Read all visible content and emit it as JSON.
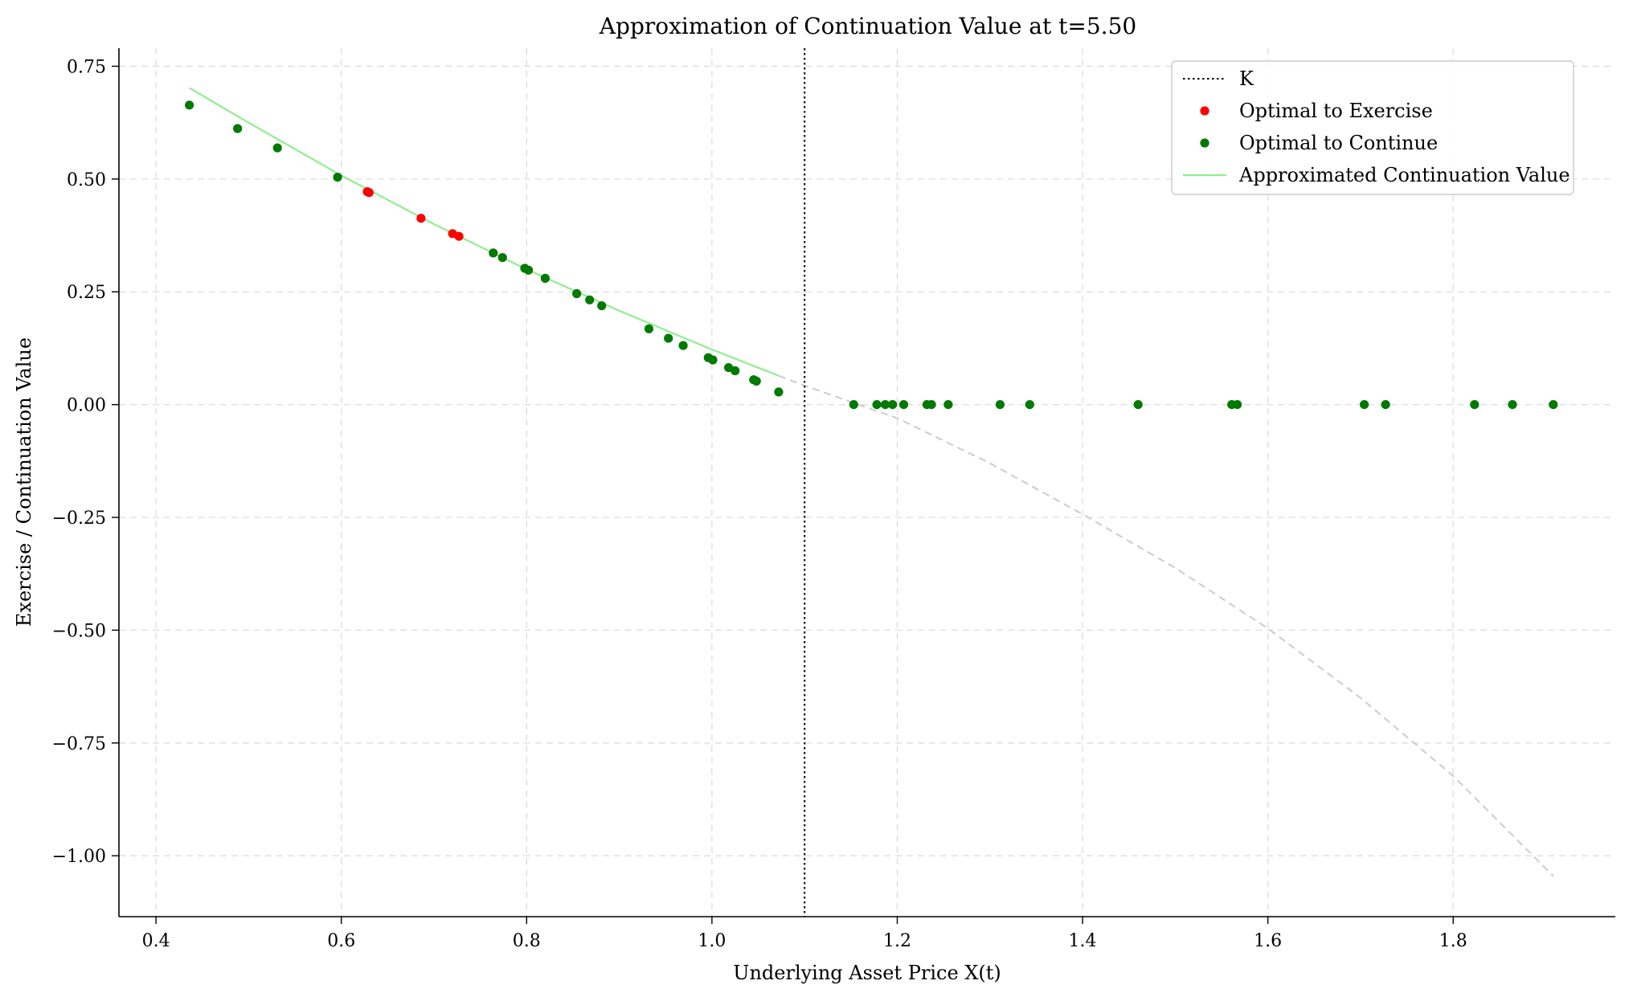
{
  "chart_data": {
    "type": "scatter",
    "title": "Approximation of Continuation Value at t=5.50",
    "xlabel": "Underlying Asset Price X(t)",
    "ylabel": "Exercise / Continuation Value",
    "xlim": [
      0.36,
      1.975
    ],
    "ylim": [
      -1.135,
      0.79
    ],
    "xticks": [
      0.4,
      0.6,
      0.8,
      1.0,
      1.2,
      1.4,
      1.6,
      1.8
    ],
    "xtick_labels": [
      "0.4",
      "0.6",
      "0.8",
      "1.0",
      "1.2",
      "1.4",
      "1.6",
      "1.8"
    ],
    "yticks": [
      0.75,
      0.5,
      0.25,
      0.0,
      -0.25,
      -0.5,
      -0.75,
      -1.0
    ],
    "ytick_labels": [
      "0.75",
      "0.50",
      "0.25",
      "0.00",
      "−0.25",
      "−0.50",
      "−0.75",
      "−1.00"
    ],
    "grid": true,
    "legend_position": "top-right",
    "strike_K": 1.1,
    "colors": {
      "strike_line": "#000000",
      "exercise_points": "#ff0000",
      "continue_points": "#007a00",
      "continuation_curve": "#90ee90",
      "extrapolated_curve": "#cccccc",
      "grid": "#dddddd"
    },
    "legend": [
      {
        "label": "K",
        "style": "dotted-line",
        "color": "#000000"
      },
      {
        "label": "Optimal to Exercise",
        "style": "dot",
        "color": "#ff0000"
      },
      {
        "label": "Optimal to Continue",
        "style": "dot",
        "color": "#007a00"
      },
      {
        "label": "Approximated Continuation Value",
        "style": "line",
        "color": "#90ee90"
      }
    ],
    "series": [
      {
        "name": "Optimal to Exercise",
        "type": "scatter",
        "points": [
          [
            0.628,
            0.472
          ],
          [
            0.63,
            0.47
          ],
          [
            0.686,
            0.413
          ],
          [
            0.72,
            0.379
          ],
          [
            0.727,
            0.373
          ]
        ]
      },
      {
        "name": "Optimal to Continue",
        "type": "scatter",
        "points": [
          [
            0.436,
            0.664
          ],
          [
            0.488,
            0.612
          ],
          [
            0.531,
            0.569
          ],
          [
            0.596,
            0.504
          ],
          [
            0.764,
            0.336
          ],
          [
            0.774,
            0.326
          ],
          [
            0.798,
            0.302
          ],
          [
            0.802,
            0.298
          ],
          [
            0.82,
            0.28
          ],
          [
            0.854,
            0.246
          ],
          [
            0.868,
            0.232
          ],
          [
            0.881,
            0.219
          ],
          [
            0.932,
            0.168
          ],
          [
            0.953,
            0.147
          ],
          [
            0.969,
            0.131
          ],
          [
            0.996,
            0.104
          ],
          [
            1.001,
            0.099
          ],
          [
            1.018,
            0.082
          ],
          [
            1.025,
            0.075
          ],
          [
            1.045,
            0.055
          ],
          [
            1.048,
            0.052
          ],
          [
            1.072,
            0.028
          ],
          [
            1.153,
            0.0
          ],
          [
            1.178,
            0.0
          ],
          [
            1.187,
            0.0
          ],
          [
            1.195,
            0.0
          ],
          [
            1.207,
            0.0
          ],
          [
            1.232,
            0.0
          ],
          [
            1.237,
            0.0
          ],
          [
            1.255,
            0.0
          ],
          [
            1.311,
            0.0
          ],
          [
            1.343,
            0.0
          ],
          [
            1.46,
            0.0
          ],
          [
            1.561,
            0.0
          ],
          [
            1.567,
            0.0
          ],
          [
            1.704,
            0.0
          ],
          [
            1.727,
            0.0
          ],
          [
            1.823,
            0.0
          ],
          [
            1.864,
            0.0
          ],
          [
            1.908,
            0.0
          ]
        ]
      },
      {
        "name": "Approximated Continuation Value",
        "type": "line",
        "x": [
          0.436,
          0.5,
          0.6,
          0.7,
          0.8,
          0.9,
          1.0,
          1.072
        ],
        "y": [
          0.702,
          0.625,
          0.508,
          0.4,
          0.3,
          0.208,
          0.122,
          0.064
        ]
      },
      {
        "type": "line",
        "style": "dashed",
        "x": [
          1.072,
          1.1,
          1.2,
          1.3,
          1.4,
          1.5,
          1.6,
          1.7,
          1.8,
          1.908
        ],
        "y": [
          0.064,
          0.042,
          -0.03,
          -0.13,
          -0.243,
          -0.362,
          -0.496,
          -0.65,
          -0.823,
          -1.045
        ]
      }
    ]
  }
}
